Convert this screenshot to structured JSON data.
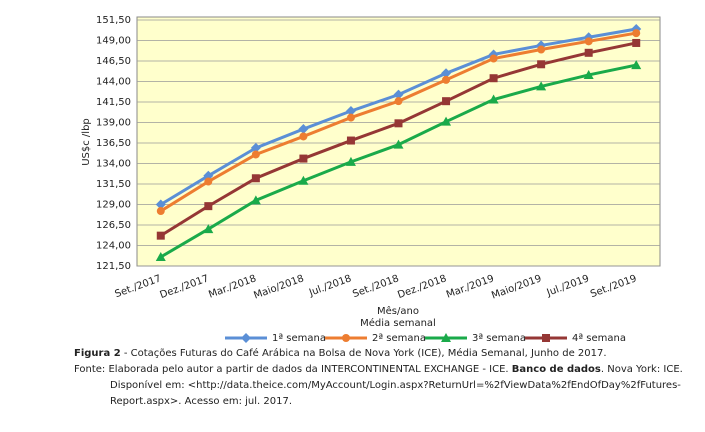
{
  "chart_data": {
    "type": "line",
    "ylabel": "US$c /lbp",
    "xlabel": "Mês/ano",
    "xlabel2": "Média semanal",
    "categories": [
      "Set./2017",
      "Dez./2017",
      "Mar./2018",
      "Maio/2018",
      "Jul./2018",
      "Set./2018",
      "Dez./2018",
      "Mar./2019",
      "Maio/2019",
      "Jul./2019",
      "Set./2019"
    ],
    "series": [
      {
        "name": "1ª semana",
        "color": "#5b8fd6",
        "marker": "diamond",
        "values": [
          129.0,
          132.5,
          135.9,
          138.2,
          140.4,
          142.4,
          145.0,
          147.3,
          148.4,
          149.4,
          150.4
        ]
      },
      {
        "name": "2ª semana",
        "color": "#ed7d31",
        "marker": "circle",
        "values": [
          128.2,
          131.8,
          135.1,
          137.3,
          139.6,
          141.6,
          144.2,
          146.8,
          147.9,
          148.9,
          149.9
        ]
      },
      {
        "name": "3ª semana",
        "color": "#1aaa4a",
        "marker": "triangle",
        "values": [
          122.6,
          126.0,
          129.5,
          131.9,
          134.2,
          136.3,
          139.1,
          141.8,
          143.4,
          144.8,
          146.0
        ]
      },
      {
        "name": "4ª semana",
        "color": "#953735",
        "marker": "square",
        "values": [
          125.2,
          128.8,
          132.2,
          134.6,
          136.8,
          138.9,
          141.6,
          144.4,
          146.1,
          147.5,
          148.7
        ]
      }
    ],
    "ylim": [
      121.5,
      151.5
    ],
    "yticks": [
      {
        "value": 121.5,
        "label": "121,50"
      },
      {
        "value": 124,
        "label": "124,00"
      },
      {
        "value": 126.5,
        "label": "126,50"
      },
      {
        "value": 129,
        "label": "129,00"
      },
      {
        "value": 131.5,
        "label": "131,50"
      },
      {
        "value": 134,
        "label": "134,00"
      },
      {
        "value": 136.5,
        "label": "136,50"
      },
      {
        "value": 139,
        "label": "139,00"
      },
      {
        "value": 141.5,
        "label": "141,50"
      },
      {
        "value": 144,
        "label": "144,00"
      },
      {
        "value": 146.5,
        "label": "146,50"
      },
      {
        "value": 149,
        "label": "149,00"
      },
      {
        "value": 151.5,
        "label": "151,50"
      }
    ],
    "grid": true,
    "legend": "bottom"
  },
  "caption": {
    "label": "Figura 2",
    "text": " - Cotações Futuras do Café Arábica na Bolsa de Nova York (ICE), Média Semanal, Junho de 2017."
  },
  "source": {
    "part1": "Fonte: Elaborada pelo autor a partir de dados da INTERCONTINENTAL EXCHANGE - ICE. ",
    "bold": "Banco de dados",
    "part2": ". Nova York: ICE. Disponível em: <http://data.theice.com/MyAccount/Login.aspx?ReturnUrl=%2fViewData%2fEndOfDay%2fFutures-Report.aspx>. Acesso em: jul. 2017."
  }
}
